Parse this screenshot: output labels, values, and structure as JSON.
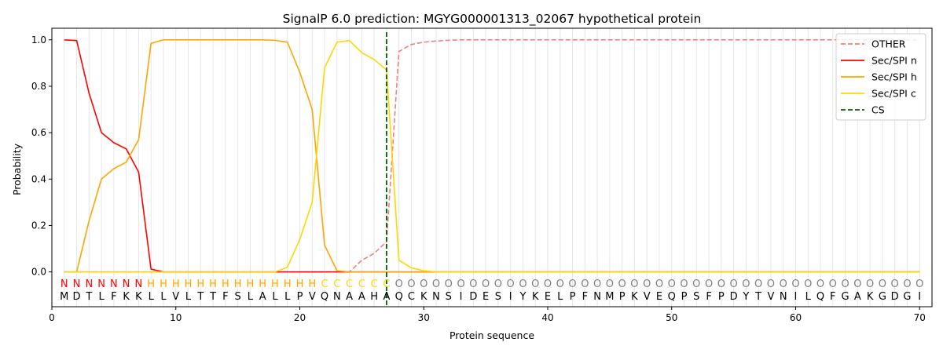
{
  "chart_data": {
    "type": "line",
    "title": "SignalP 6.0 prediction: MGYG000001313_02067 hypothetical protein",
    "xlabel": "Protein sequence",
    "ylabel": "Probability",
    "xlim": [
      0,
      71
    ],
    "ylim": [
      -0.15,
      1.05
    ],
    "xticks": [
      0,
      10,
      20,
      30,
      40,
      50,
      60,
      70
    ],
    "yticks": [
      0.0,
      0.2,
      0.4,
      0.6,
      0.8,
      1.0
    ],
    "grid": "vertical lines at every residue position",
    "legend_position": "top-right",
    "sequence": [
      "M",
      "D",
      "T",
      "L",
      "F",
      "K",
      "K",
      "L",
      "L",
      "V",
      "L",
      "T",
      "T",
      "F",
      "S",
      "L",
      "A",
      "L",
      "L",
      "P",
      "V",
      "Q",
      "N",
      "A",
      "A",
      "H",
      "A",
      "Q",
      "C",
      "K",
      "N",
      "S",
      "I",
      "D",
      "E",
      "S",
      "I",
      "Y",
      "K",
      "E",
      "L",
      "P",
      "F",
      "N",
      "M",
      "P",
      "K",
      "V",
      "E",
      "Q",
      "P",
      "S",
      "F",
      "P",
      "D",
      "Y",
      "T",
      "V",
      "N",
      "I",
      "L",
      "Q",
      "F",
      "G",
      "A",
      "K",
      "G",
      "D",
      "G",
      "I"
    ],
    "labels": [
      "N",
      "N",
      "N",
      "N",
      "N",
      "N",
      "N",
      "H",
      "H",
      "H",
      "H",
      "H",
      "H",
      "H",
      "H",
      "H",
      "H",
      "H",
      "H",
      "H",
      "H",
      "C",
      "C",
      "C",
      "C",
      "C",
      "C",
      "O",
      "O",
      "O",
      "O",
      "O",
      "O",
      "O",
      "O",
      "O",
      "O",
      "O",
      "O",
      "O",
      "O",
      "O",
      "O",
      "O",
      "O",
      "O",
      "O",
      "O",
      "O",
      "O",
      "O",
      "O",
      "O",
      "O",
      "O",
      "O",
      "O",
      "O",
      "O",
      "O",
      "O",
      "O",
      "O",
      "O",
      "O",
      "O",
      "O",
      "O",
      "O",
      "O"
    ],
    "label_colors": {
      "N": "#ff0000",
      "H": "#ffa500",
      "C": "#ffd700",
      "O": "#808080"
    },
    "series": [
      {
        "name": "OTHER",
        "color": "#f08080",
        "dash": "dashed",
        "values": [
          0,
          0,
          0,
          0,
          0,
          0,
          0,
          0,
          0,
          0,
          0,
          0,
          0,
          0,
          0,
          0,
          0,
          0,
          0,
          0,
          0,
          0,
          0,
          0,
          0.05,
          0.08,
          0.13,
          0.95,
          0.98,
          0.99,
          0.995,
          0.998,
          1,
          1,
          1,
          1,
          1,
          1,
          1,
          1,
          1,
          1,
          1,
          1,
          1,
          1,
          1,
          1,
          1,
          1,
          1,
          1,
          1,
          1,
          1,
          1,
          1,
          1,
          1,
          1,
          1,
          1,
          1,
          1,
          1,
          1,
          1,
          1,
          1,
          1
        ]
      },
      {
        "name": "Sec/SPI n",
        "color": "#ff0000",
        "dash": "solid",
        "values": [
          1.0,
          0.997,
          0.77,
          0.6,
          0.557,
          0.53,
          0.43,
          0.012,
          0,
          0,
          0,
          0,
          0,
          0,
          0,
          0,
          0,
          0,
          0,
          0,
          0,
          0,
          0,
          0,
          0,
          0,
          0,
          0,
          0,
          0,
          0,
          0,
          0,
          0,
          0,
          0,
          0,
          0,
          0,
          0,
          0,
          0,
          0,
          0,
          0,
          0,
          0,
          0,
          0,
          0,
          0,
          0,
          0,
          0,
          0,
          0,
          0,
          0,
          0,
          0,
          0,
          0,
          0,
          0,
          0,
          0,
          0,
          0,
          0,
          0
        ]
      },
      {
        "name": "Sec/SPI h",
        "color": "#ffa500",
        "dash": "solid",
        "values": [
          0,
          0,
          0.22,
          0.4,
          0.445,
          0.473,
          0.57,
          0.985,
          1,
          1,
          1,
          1,
          1,
          1,
          1,
          1,
          1,
          0.998,
          0.99,
          0.86,
          0.7,
          0.115,
          0.005,
          0,
          0,
          0,
          0,
          0,
          0,
          0,
          0,
          0,
          0,
          0,
          0,
          0,
          0,
          0,
          0,
          0,
          0,
          0,
          0,
          0,
          0,
          0,
          0,
          0,
          0,
          0,
          0,
          0,
          0,
          0,
          0,
          0,
          0,
          0,
          0,
          0,
          0,
          0,
          0,
          0,
          0,
          0,
          0,
          0,
          0,
          0
        ]
      },
      {
        "name": "Sec/SPI c",
        "color": "#ffd700",
        "dash": "solid",
        "values": [
          0,
          0,
          0,
          0,
          0,
          0,
          0,
          0,
          0,
          0,
          0,
          0,
          0,
          0,
          0,
          0,
          0,
          0,
          0.02,
          0.14,
          0.3,
          0.88,
          0.99,
          0.997,
          0.945,
          0.915,
          0.87,
          0.05,
          0.018,
          0.005,
          0,
          0,
          0,
          0,
          0,
          0,
          0,
          0,
          0,
          0,
          0,
          0,
          0,
          0,
          0,
          0,
          0,
          0,
          0,
          0,
          0,
          0,
          0,
          0,
          0,
          0,
          0,
          0,
          0,
          0,
          0,
          0,
          0,
          0,
          0,
          0,
          0,
          0,
          0,
          0
        ]
      },
      {
        "name": "CS",
        "color": "#006400",
        "dash": "dashed",
        "position": 27
      }
    ]
  }
}
